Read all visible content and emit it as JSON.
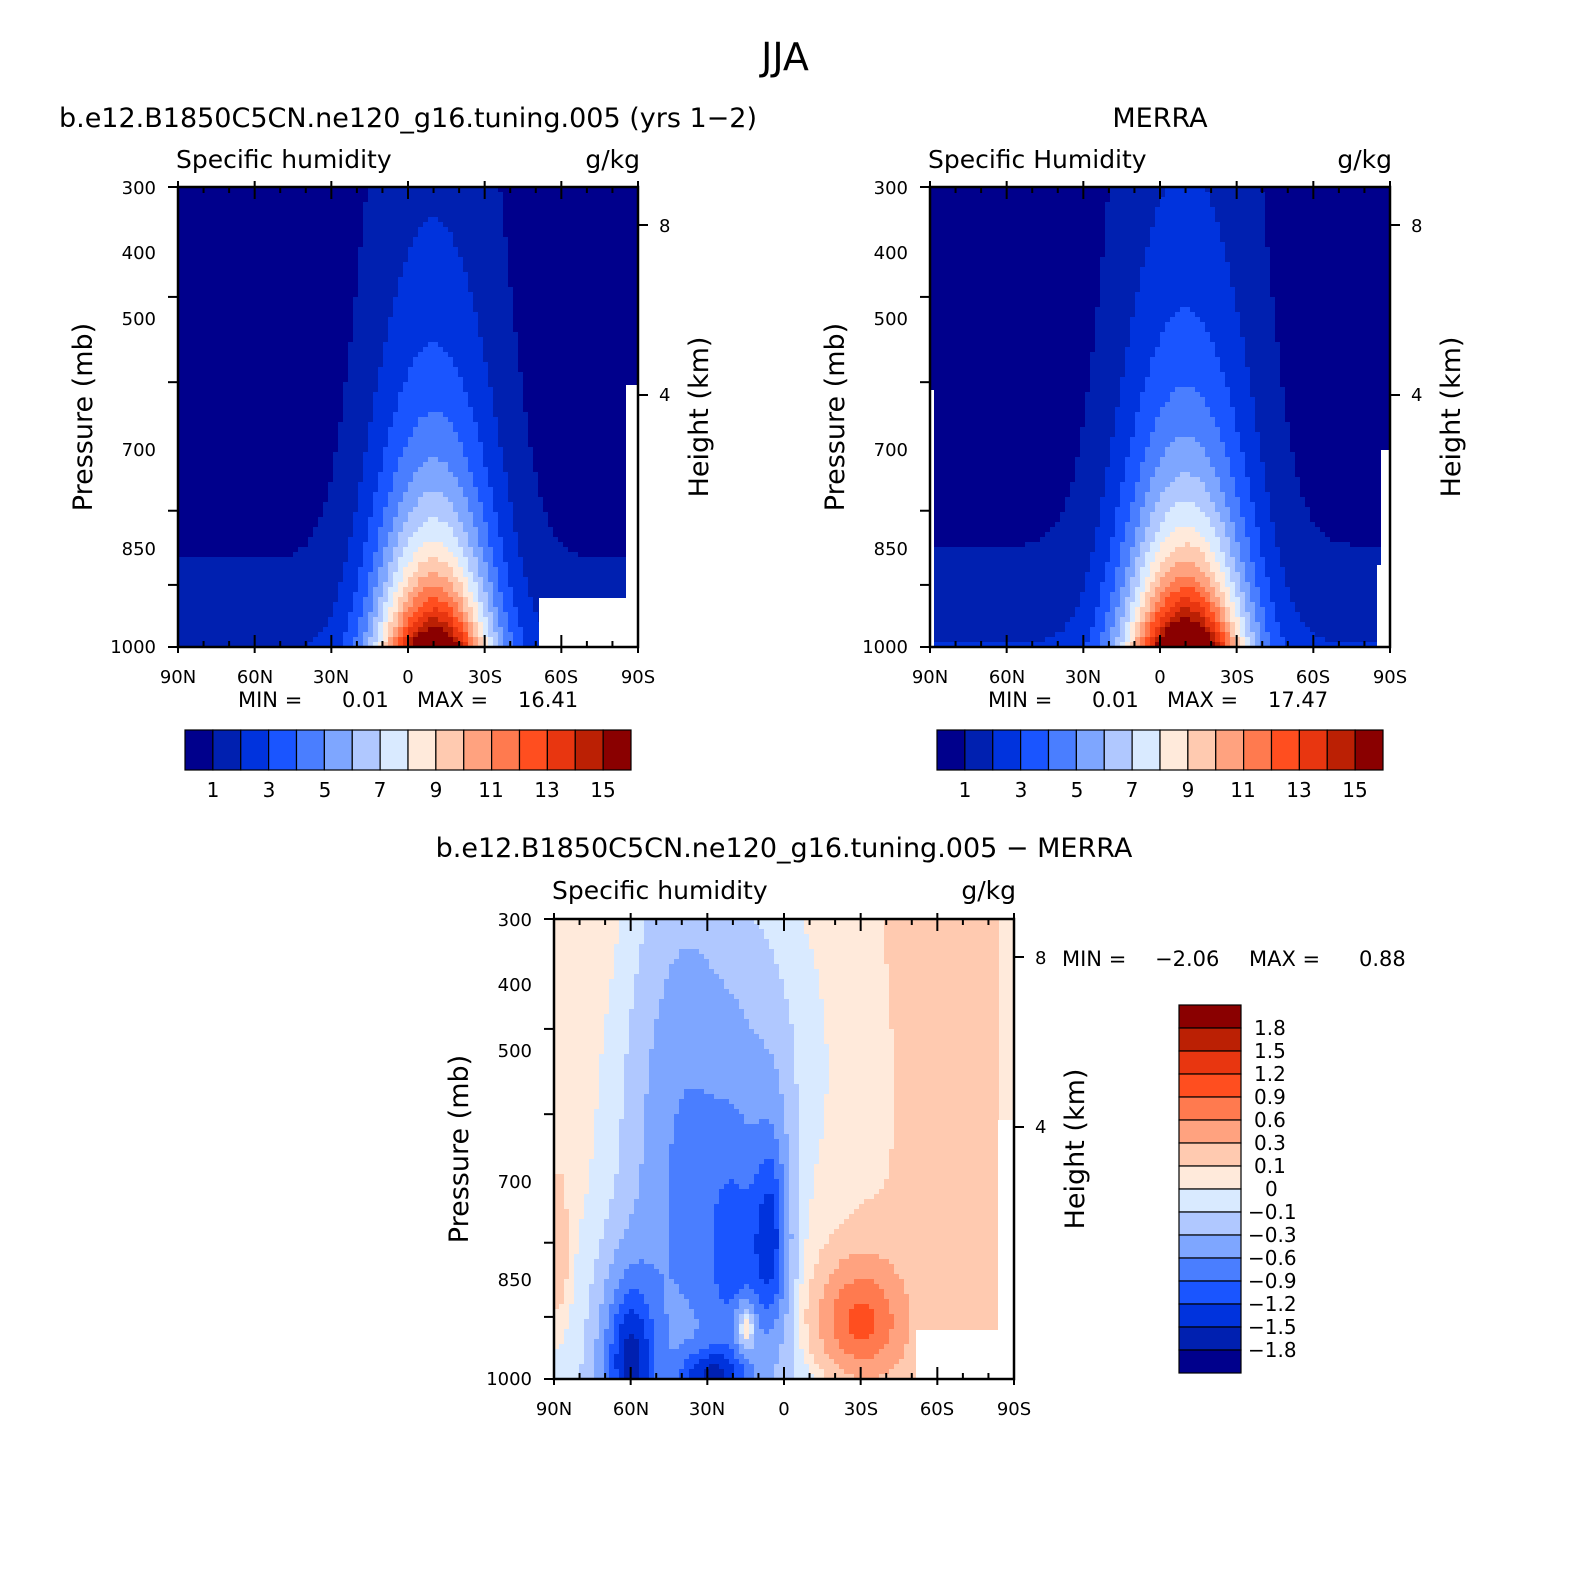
{
  "figure": {
    "title": "JJA"
  },
  "chart_data": [
    {
      "type": "heatmap",
      "panel": "model",
      "run_title": "b.e12.B1850C5CN.ne120_g16.tuning.005 (yrs 1−2)",
      "variable": "Specific humidity",
      "units": "g/kg",
      "ylabel": "Pressure (mb)",
      "ylabel_right": "Height (km)",
      "x_ticks": [
        "90N",
        "60N",
        "30N",
        "0",
        "30S",
        "60S",
        "90S"
      ],
      "y_ticks": [
        "300",
        "400",
        "500",
        "700",
        "850",
        "1000"
      ],
      "y_ticks_right": [
        "8",
        "4"
      ],
      "xlim": [
        90,
        -90
      ],
      "ylim": [
        1000,
        300
      ],
      "min_label": "MIN =",
      "min_value": "0.01",
      "max_label": "MAX =",
      "max_value": "16.41",
      "field": {
        "peak_lat": -10,
        "peak_value": 17.4,
        "lat_halfwidth": 22,
        "scale_height_mb": 310
      },
      "colorbar": {
        "colors": [
          "#00008c",
          "#0020b0",
          "#0033dd",
          "#1a55ff",
          "#4a7eff",
          "#7ea6ff",
          "#b0c8ff",
          "#d9eaff",
          "#ffeadb",
          "#ffcab0",
          "#ffa27f",
          "#ff7a4f",
          "#ff4e1f",
          "#e83610",
          "#bb2004",
          "#8a0000"
        ],
        "labels": [
          "1",
          "3",
          "5",
          "7",
          "9",
          "11",
          "13",
          "15"
        ]
      }
    },
    {
      "type": "heatmap",
      "panel": "obs",
      "run_title": "MERRA",
      "variable": "Specific Humidity",
      "units": "g/kg",
      "ylabel": "Pressure (mb)",
      "ylabel_right": "Height (km)",
      "x_ticks": [
        "90N",
        "60N",
        "30N",
        "0",
        "30S",
        "60S",
        "90S"
      ],
      "y_ticks": [
        "300",
        "400",
        "500",
        "700",
        "850",
        "1000"
      ],
      "y_ticks_right": [
        "8",
        "4"
      ],
      "xlim": [
        90,
        -90
      ],
      "ylim": [
        1000,
        300
      ],
      "min_label": "MIN =",
      "min_value": "0.01",
      "max_label": "MAX =",
      "max_value": "17.47",
      "field": {
        "peak_lat": -10,
        "peak_value": 18.6,
        "lat_halfwidth": 23,
        "scale_height_mb": 320
      },
      "colorbar": {
        "colors": [
          "#00008c",
          "#0020b0",
          "#0033dd",
          "#1a55ff",
          "#4a7eff",
          "#7ea6ff",
          "#b0c8ff",
          "#d9eaff",
          "#ffeadb",
          "#ffcab0",
          "#ffa27f",
          "#ff7a4f",
          "#ff4e1f",
          "#e83610",
          "#bb2004",
          "#8a0000"
        ],
        "labels": [
          "1",
          "3",
          "5",
          "7",
          "9",
          "11",
          "13",
          "15"
        ]
      }
    },
    {
      "type": "heatmap",
      "panel": "diff",
      "run_title": "b.e12.B1850C5CN.ne120_g16.tuning.005 − MERRA",
      "variable": "Specific humidity",
      "units": "g/kg",
      "ylabel": "Pressure (mb)",
      "ylabel_right": "Height (km)",
      "x_ticks": [
        "90N",
        "60N",
        "30N",
        "0",
        "30S",
        "60S",
        "90S"
      ],
      "y_ticks": [
        "300",
        "400",
        "500",
        "700",
        "850",
        "1000"
      ],
      "y_ticks_right": [
        "8",
        "4"
      ],
      "xlim": [
        90,
        -90
      ],
      "ylim": [
        1000,
        300
      ],
      "min_label": "MIN =",
      "min_value": "−2.06",
      "max_label": "MAX =",
      "max_value": "0.88",
      "colorbar": {
        "levels": [
          -1.8,
          -1.5,
          -1.2,
          -0.9,
          -0.6,
          -0.3,
          -0.1,
          0,
          0.1,
          0.3,
          0.6,
          0.9,
          1.2,
          1.5,
          1.8
        ],
        "colors": [
          "#00008c",
          "#0020b0",
          "#0033dd",
          "#1a55ff",
          "#4a7eff",
          "#7ea6ff",
          "#b0c8ff",
          "#d9eaff",
          "#ffeadb",
          "#ffcab0",
          "#ffa27f",
          "#ff7a4f",
          "#ff4e1f",
          "#e83610",
          "#bb2004",
          "#8a0000"
        ],
        "labels": [
          "1.8",
          "1.5",
          "1.2",
          "0.9",
          "0.6",
          "0.3",
          "0.1",
          "0",
          "−0.1",
          "−0.3",
          "−0.6",
          "−0.9",
          "−1.2",
          "−1.5",
          "−1.8"
        ]
      }
    }
  ]
}
